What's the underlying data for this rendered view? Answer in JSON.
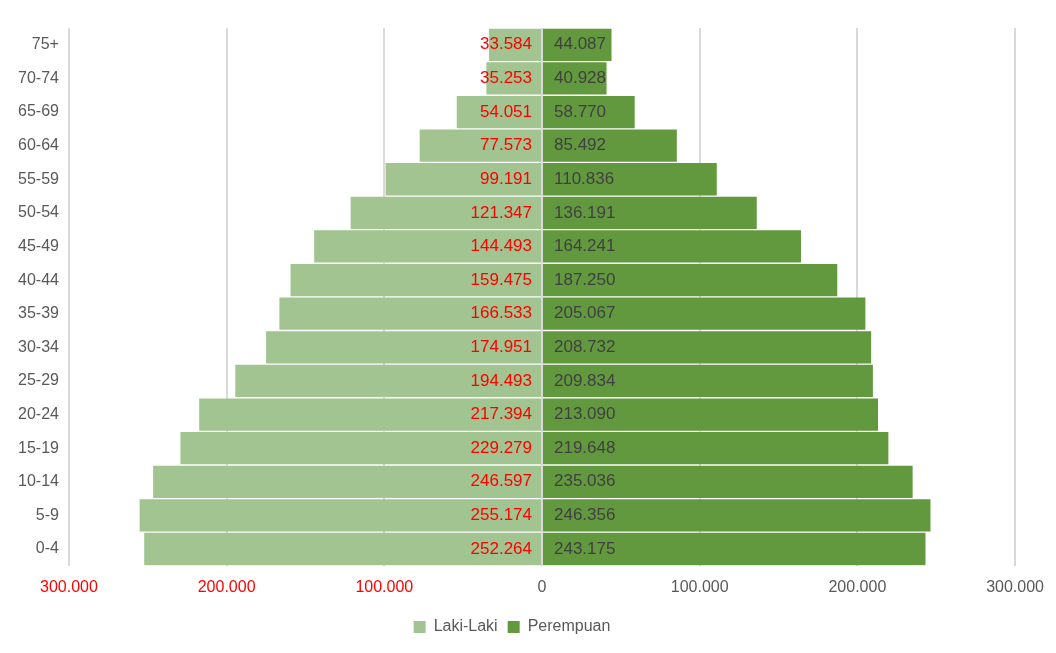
{
  "chart_data": {
    "type": "bar",
    "orientation": "horizontal",
    "categories": [
      "75+",
      "70-74",
      "65-69",
      "60-64",
      "55-59",
      "50-54",
      "45-49",
      "40-44",
      "35-39",
      "30-34",
      "25-29",
      "20-24",
      "15-19",
      "10-14",
      "5-9",
      "0-4"
    ],
    "series": [
      {
        "name": "Laki-Laki",
        "color": "#a1c490",
        "values": [
          33584,
          35253,
          54051,
          77573,
          99191,
          121347,
          144493,
          159475,
          166533,
          174951,
          194493,
          217394,
          229279,
          246597,
          255174,
          252264
        ],
        "base": [
          -33584,
          -35253,
          -54051,
          -77573,
          -99191,
          -121347,
          -144493,
          -159475,
          -166533,
          -174951,
          -194493,
          -217394,
          -229279,
          -246597,
          -255174,
          -252264
        ],
        "value_labels": [
          "33.584",
          "35.253",
          "54.051",
          "77.573",
          "99.191",
          "121.347",
          "144.493",
          "159.475",
          "166.533",
          "174.951",
          "194.493",
          "217.394",
          "229.279",
          "246.597",
          "255.174",
          "252.264"
        ]
      },
      {
        "name": "Perempuan",
        "color": "#62993e",
        "values": [
          44087,
          40928,
          58770,
          85492,
          110836,
          136191,
          164241,
          187250,
          205067,
          208732,
          209834,
          213090,
          219648,
          235036,
          246356,
          243175
        ],
        "value_labels": [
          "44.087",
          "40.928",
          "58.770",
          "85.492",
          "110.836",
          "136.191",
          "164.241",
          "187.250",
          "205.067",
          "208.732",
          "209.834",
          "213.090",
          "219.648",
          "235.036",
          "246.356",
          "243.175"
        ]
      }
    ],
    "xlim": [
      -300000,
      300000
    ],
    "xticks": [
      {
        "value": -300000,
        "label": "300.000"
      },
      {
        "value": -200000,
        "label": "200.000"
      },
      {
        "value": -100000,
        "label": "100.000"
      },
      0,
      {
        "value": 100000,
        "label": "100.000"
      },
      {
        "value": 200000,
        "label": "200.000"
      },
      {
        "value": 300000,
        "label": "300.000"
      }
    ],
    "grid": "x",
    "legend": "bottom"
  }
}
